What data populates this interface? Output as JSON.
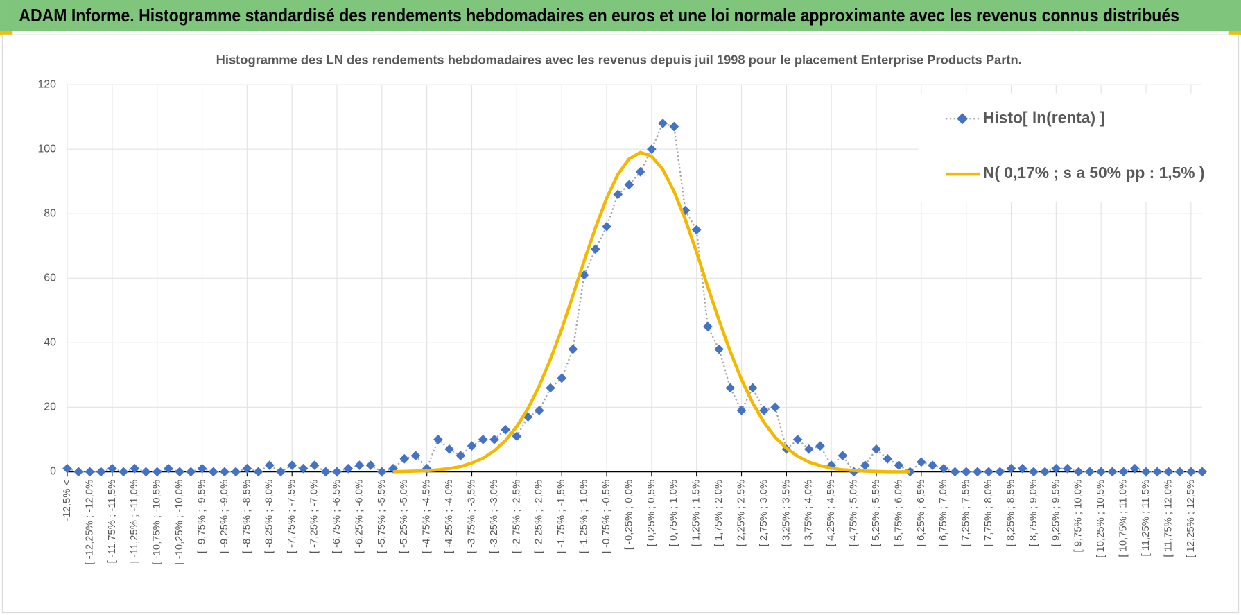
{
  "header": {
    "title": "ADAM Informe. Histogramme standardisé des rendements hebdomadaires en euros et une loi normale approximante avec les revenus connus distribués"
  },
  "chart_data": {
    "type": "line",
    "title": "Histogramme des LN des rendements hebdomadaires avec les revenus depuis juil 1998 pour le placement Enterprise Products Partn.",
    "categories": [
      "-12,5% <",
      null,
      "[ -12,25% ; -12,0%",
      null,
      "[ -11,75% ; -11,5%",
      null,
      "[ -11,25% ; -11,0%",
      null,
      "[ -10,75% ; -10,5%",
      null,
      "[ -10,25% ; -10,0%",
      null,
      "[ -9,75% ; -9,5%",
      null,
      "[ -9,25% ; -9,0%",
      null,
      "[ -8,75% ; -8,5%",
      null,
      "[ -8,25% ; -8,0%",
      null,
      "[ -7,75% ; -7,5%",
      null,
      "[ -7,25% ; -7,0%",
      null,
      "[ -6,75% ; -6,5%",
      null,
      "[ -6,25% ; -6,0%",
      null,
      "[ -5,75% ; -5,5%",
      null,
      "[ -5,25% ; -5,0%",
      null,
      "[ -4,75% ; -4,5%",
      null,
      "[ -4,25% ; -4,0%",
      null,
      "[ -3,75% ; -3,5%",
      null,
      "[ -3,25% ; -3,0%",
      null,
      "[ -2,75% ; -2,5%",
      null,
      "[ -2,25% ; -2,0%",
      null,
      "[ -1,75% ; -1,5%",
      null,
      "[ -1,25% ; -1,0%",
      null,
      "[ -0,75% ; -0,5%",
      null,
      "[ -0,25% ; 0,0%",
      null,
      "[ 0,25% ; 0,5%",
      null,
      "[ 0,75% ; 1,0%",
      null,
      "[ 1,25% ; 1,5%",
      null,
      "[ 1,75% ; 2,0%",
      null,
      "[ 2,25% ; 2,5%",
      null,
      "[ 2,75% ; 3,0%",
      null,
      "[ 3,25% ; 3,5%",
      null,
      "[ 3,75% ; 4,0%",
      null,
      "[ 4,25% ; 4,5%",
      null,
      "[ 4,75% ; 5,0%",
      null,
      "[ 5,25% ; 5,5%",
      null,
      "[ 5,75% ; 6,0%",
      null,
      "[ 6,25% ; 6,5%",
      null,
      "[ 6,75% ; 7,0%",
      null,
      "[ 7,25% ; 7,5%",
      null,
      "[ 7,75% ; 8,0%",
      null,
      "[ 8,25% ; 8,5%",
      null,
      "[ 8,75% ; 9,0%",
      null,
      "[ 9,25% ; 9,5%",
      null,
      "[ 9,75% ; 10,0%",
      null,
      "[ 10,25% ; 10,5%",
      null,
      "[ 10,75% ; 11,0%",
      null,
      "[ 11,25% ; 11,5%",
      null,
      "[ 11,75% ; 12,0%",
      null,
      "[ 12,25% ; 12,5%",
      null
    ],
    "series": [
      {
        "name": "Histo[ ln(renta) ]",
        "color": "#4472c4",
        "line_color": "#a5a5a5",
        "line_style": "dotted",
        "marker": "diamond",
        "values": [
          1,
          0,
          0,
          0,
          1,
          0,
          1,
          0,
          0,
          1,
          0,
          0,
          1,
          0,
          0,
          0,
          1,
          0,
          2,
          0,
          2,
          1,
          2,
          0,
          0,
          1,
          2,
          2,
          0,
          1,
          4,
          5,
          1,
          10,
          7,
          5,
          8,
          10,
          10,
          13,
          11,
          17,
          19,
          26,
          29,
          38,
          61,
          69,
          76,
          86,
          89,
          93,
          100,
          108,
          107,
          81,
          75,
          45,
          38,
          26,
          19,
          26,
          19,
          20,
          7,
          10,
          7,
          8,
          2,
          5,
          0,
          2,
          7,
          4,
          2,
          0,
          3,
          2,
          1,
          0,
          0,
          0,
          0,
          0,
          1,
          1,
          0,
          0,
          1,
          1,
          0,
          0,
          0,
          0,
          0,
          1,
          0,
          0,
          0,
          0,
          0,
          0
        ]
      },
      {
        "name": "N( 0,17% ; s a 50% pp : 1,5% )",
        "color": "#f5b800",
        "line_color": "#f5b800",
        "line_style": "solid",
        "marker": "none",
        "values": [
          null,
          null,
          null,
          null,
          null,
          null,
          null,
          null,
          null,
          null,
          null,
          null,
          null,
          null,
          null,
          null,
          null,
          null,
          null,
          null,
          null,
          null,
          null,
          null,
          null,
          null,
          null,
          null,
          null,
          0,
          0.1,
          0.2,
          0.3,
          0.6,
          1.0,
          1.6,
          2.7,
          4.2,
          6.5,
          9.7,
          14.0,
          19.6,
          26.6,
          34.9,
          44.2,
          54.7,
          65.4,
          75.6,
          84.8,
          92.2,
          97.0,
          99.0,
          97.8,
          93.7,
          86.9,
          78.2,
          68.1,
          57.3,
          47.0,
          37.3,
          28.6,
          21.3,
          15.3,
          10.7,
          7.3,
          4.8,
          3.0,
          1.9,
          1.1,
          0.6,
          0.4,
          0.2,
          0.1,
          0,
          0,
          0,
          null,
          null,
          null,
          null,
          null,
          null,
          null,
          null,
          null,
          null,
          null,
          null,
          null,
          null,
          null,
          null,
          null,
          null,
          null,
          null,
          null,
          null,
          null,
          null,
          null,
          null
        ]
      }
    ],
    "ylim": [
      0,
      120
    ],
    "yticks": [
      0,
      20,
      40,
      60,
      80,
      100,
      120
    ],
    "grid": true,
    "legend": "top-right"
  }
}
